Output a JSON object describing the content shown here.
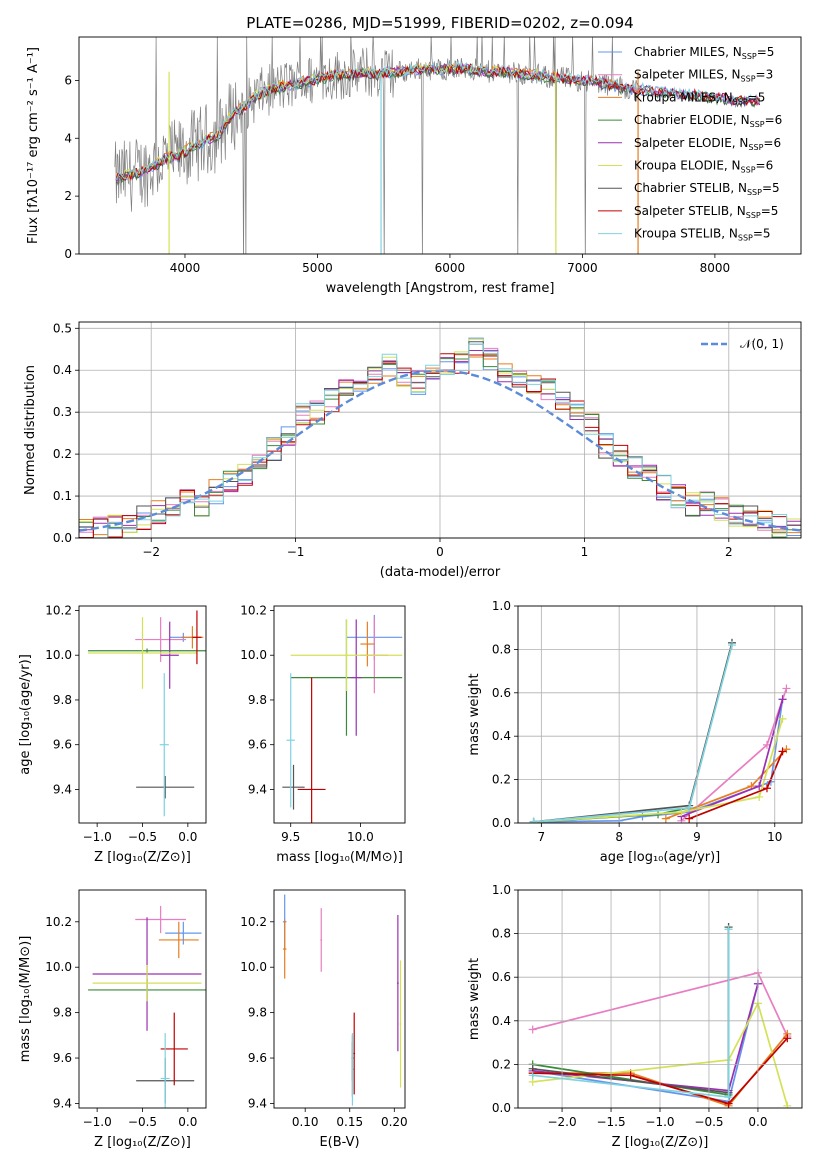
{
  "figure": {
    "title": "PLATE=0286, MJD=51999, FIBERID=0202, z=0.094"
  },
  "series": [
    {
      "name": "Chabrier MILES",
      "nssp": "5",
      "color": "#6495ed"
    },
    {
      "name": "Salpeter MILES",
      "nssp": "3",
      "color": "#e87dc2"
    },
    {
      "name": "Kroupa MILES",
      "nssp": "5",
      "color": "#e67e22"
    },
    {
      "name": "Chabrier ELODIE",
      "nssp": "6",
      "color": "#3a8a3a"
    },
    {
      "name": "Salpeter ELODIE",
      "nssp": "6",
      "color": "#9b30b0"
    },
    {
      "name": "Kroupa ELODIE",
      "nssp": "6",
      "color": "#d4e157"
    },
    {
      "name": "Chabrier STELIB",
      "nssp": "5",
      "color": "#555555"
    },
    {
      "name": "Salpeter STELIB",
      "nssp": "5",
      "color": "#c00000"
    },
    {
      "name": "Kroupa STELIB",
      "nssp": "5",
      "color": "#7fd3e0"
    }
  ],
  "chart_data": [
    {
      "id": "spectrum",
      "type": "line",
      "xlabel": "wavelength [Angstrom, rest frame]",
      "ylabel": "Flux [fλ10⁻¹⁷ erg cm⁻² s⁻¹ A⁻¹]",
      "xlim": [
        3200,
        8650
      ],
      "ylim": [
        0,
        7.5
      ],
      "xticks": [
        4000,
        5000,
        6000,
        7000,
        8000
      ],
      "yticks": [
        0,
        2,
        4,
        6
      ],
      "grid": false,
      "legend": "top-right",
      "continuum_x": [
        3480,
        3550,
        3650,
        3750,
        3850,
        3950,
        4050,
        4150,
        4250,
        4350,
        4450,
        4550,
        4650,
        4750,
        4850,
        4950,
        5050,
        5150,
        5250,
        5350,
        5450,
        5550,
        5650,
        5750,
        5850,
        5950,
        6050,
        6150,
        6250,
        6350,
        6450,
        6550,
        6650,
        6750,
        6850,
        6950,
        7050,
        7150,
        7250,
        7350,
        7450,
        7550,
        7650,
        7750,
        7850,
        7950,
        8050,
        8150,
        8250,
        8350
      ],
      "continuum_y": [
        2.6,
        2.7,
        2.8,
        3.0,
        3.3,
        3.4,
        3.7,
        3.9,
        4.1,
        4.8,
        5.1,
        5.5,
        5.7,
        5.8,
        5.9,
        6.0,
        6.1,
        6.2,
        6.2,
        6.3,
        6.2,
        6.3,
        6.3,
        6.4,
        6.4,
        6.4,
        6.4,
        6.4,
        6.3,
        6.3,
        6.3,
        6.2,
        6.2,
        6.1,
        6.1,
        6.0,
        6.0,
        5.9,
        5.8,
        5.7,
        5.7,
        5.6,
        5.6,
        5.5,
        5.5,
        5.4,
        5.4,
        5.3,
        5.3,
        5.3
      ]
    },
    {
      "id": "residuals",
      "type": "bar",
      "xlabel": "(data-model)/error",
      "ylabel": "Normed distribution",
      "xlim": [
        -2.5,
        2.5
      ],
      "ylim": [
        0,
        0.515
      ],
      "xticks": [
        -2,
        -1,
        0,
        1,
        2
      ],
      "yticks": [
        0.0,
        0.1,
        0.2,
        0.3,
        0.4,
        0.5
      ],
      "grid": true,
      "legend": "top-right",
      "normal_label": "𝒩(0, 1)",
      "bin_edges_start": -2.5,
      "bin_width": 0.1,
      "hist": [
        0.02,
        0.02,
        0.03,
        0.04,
        0.05,
        0.06,
        0.08,
        0.1,
        0.08,
        0.11,
        0.13,
        0.15,
        0.18,
        0.21,
        0.25,
        0.29,
        0.3,
        0.33,
        0.35,
        0.38,
        0.39,
        0.41,
        0.38,
        0.37,
        0.39,
        0.41,
        0.42,
        0.45,
        0.43,
        0.4,
        0.38,
        0.37,
        0.35,
        0.33,
        0.3,
        0.27,
        0.22,
        0.2,
        0.17,
        0.15,
        0.12,
        0.1,
        0.08,
        0.08,
        0.07,
        0.05,
        0.05,
        0.04,
        0.03,
        0.02
      ]
    },
    {
      "id": "age-vs-Z",
      "type": "scatter",
      "xlabel": "Z [log₁₀(Z/Z⊙)]",
      "ylabel": "age  [log₁₀(age/yr)]",
      "xlim": [
        -1.2,
        0.2
      ],
      "ylim": [
        9.25,
        10.22
      ],
      "xticks": [
        -1.0,
        -0.5,
        0.0
      ],
      "yticks": [
        9.4,
        9.6,
        9.8,
        10.0,
        10.2
      ]
    },
    {
      "id": "age-vs-mass",
      "type": "scatter",
      "xlabel": "mass [log₁₀(M/M⊙)]",
      "ylabel": "",
      "xlim": [
        9.38,
        10.32
      ],
      "ylim": [
        9.25,
        10.22
      ],
      "xticks": [
        9.5,
        10.0
      ],
      "yticks": [
        9.4,
        9.6,
        9.8,
        10.0,
        10.2
      ]
    },
    {
      "id": "mass-weight-vs-age",
      "type": "line",
      "xlabel": "age  [log₁₀(age/yr)]",
      "ylabel": "mass weight",
      "xlim": [
        6.7,
        10.35
      ],
      "ylim": [
        0,
        1.0
      ],
      "xticks": [
        7,
        8,
        9,
        10
      ],
      "yticks": [
        0.0,
        0.2,
        0.4,
        0.6,
        0.8,
        1.0
      ],
      "grid": true
    },
    {
      "id": "mass-vs-Z",
      "type": "scatter",
      "xlabel": "Z [log₁₀(Z/Z⊙)]",
      "ylabel": "mass [log₁₀(M/M⊙)]",
      "xlim": [
        -1.2,
        0.2
      ],
      "ylim": [
        9.38,
        10.34
      ],
      "xticks": [
        -1.0,
        -0.5,
        0.0
      ],
      "yticks": [
        9.4,
        9.6,
        9.8,
        10.0,
        10.2
      ]
    },
    {
      "id": "mass-vs-EBV",
      "type": "scatter",
      "xlabel": "E(B-V)",
      "ylabel": "",
      "xlim": [
        0.065,
        0.212
      ],
      "ylim": [
        9.38,
        10.34
      ],
      "xticks": [
        0.1,
        0.15,
        0.2
      ],
      "yticks": [
        9.4,
        9.6,
        9.8,
        10.0,
        10.2
      ]
    },
    {
      "id": "mass-weight-vs-Z",
      "type": "line",
      "xlabel": "Z [log₁₀(Z/Z⊙)]",
      "ylabel": "mass weight",
      "xlim": [
        -2.45,
        0.45
      ],
      "ylim": [
        0,
        1.0
      ],
      "xticks": [
        -2.0,
        -1.5,
        -1.0,
        -0.5,
        0.0
      ],
      "yticks": [
        0.0,
        0.2,
        0.4,
        0.6,
        0.8,
        1.0
      ],
      "grid": true
    }
  ]
}
